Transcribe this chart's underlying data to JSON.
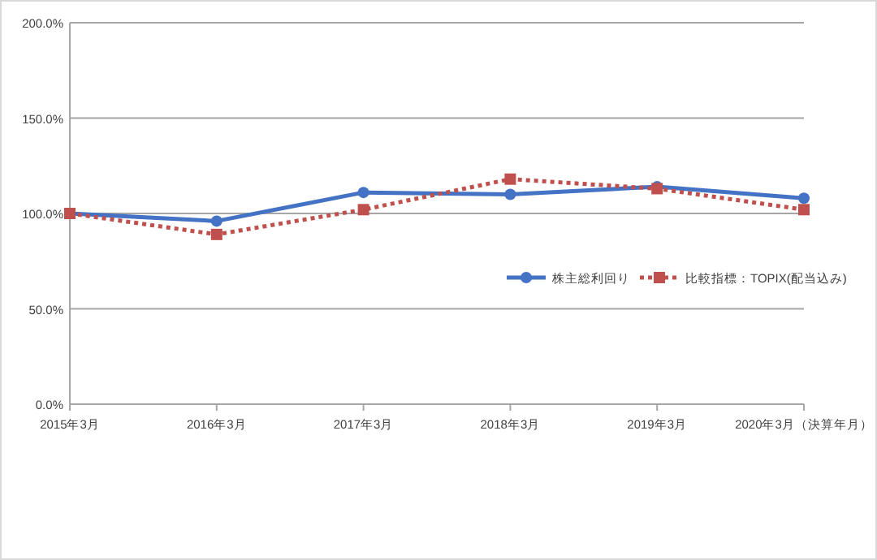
{
  "chart_data": {
    "type": "line",
    "categories": [
      "2015年3月",
      "2016年3月",
      "2017年3月",
      "2018年3月",
      "2019年3月",
      "2020年3月（決算年月）"
    ],
    "series": [
      {
        "name": "株主総利回り",
        "color": "#4472c4",
        "values": [
          100,
          96,
          111,
          110,
          114,
          108
        ],
        "marker": "circle",
        "line_style": "solid"
      },
      {
        "name": "比較指標：TOPIX(配当込み)",
        "color": "#c0504d",
        "values": [
          100,
          89,
          102,
          118,
          113,
          102
        ],
        "marker": "square",
        "line_style": "dotted"
      }
    ],
    "ylim": [
      0,
      200
    ],
    "yticks": [
      {
        "value": 0,
        "label": "0.0%"
      },
      {
        "value": 50,
        "label": "50.0%"
      },
      {
        "value": 100,
        "label": "100.0%"
      },
      {
        "value": 150,
        "label": "150.0%"
      },
      {
        "value": 200,
        "label": "200.0%"
      }
    ],
    "grid": "y",
    "legend": "right"
  }
}
